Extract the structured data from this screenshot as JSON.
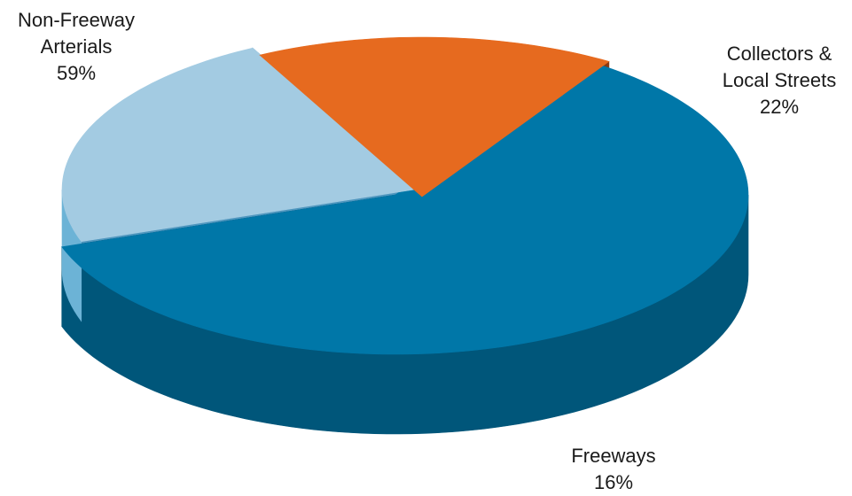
{
  "chart_data": {
    "type": "pie",
    "style": "3d-exploded",
    "slices": [
      {
        "label": "Non-Freeway Arterials",
        "display_lines": [
          "Non-Freeway",
          "Arterials"
        ],
        "value": 59,
        "value_text": "59%",
        "color": "#0077a8",
        "side_color": "#00567a",
        "dark_color": "#003e5a"
      },
      {
        "label": "Collectors & Local Streets",
        "display_lines": [
          "Collectors &",
          "Local Streets"
        ],
        "value": 22,
        "value_text": "22%",
        "color": "#a3cbe2",
        "side_color": "#6cb3d6",
        "dark_color": "#4f97bf"
      },
      {
        "label": "Freeways",
        "display_lines": [
          "Freeways"
        ],
        "value": 16,
        "value_text": "16%",
        "color": "#e66a1f",
        "side_color": "#ec833a",
        "dark_color": "#8a3a12"
      }
    ]
  }
}
